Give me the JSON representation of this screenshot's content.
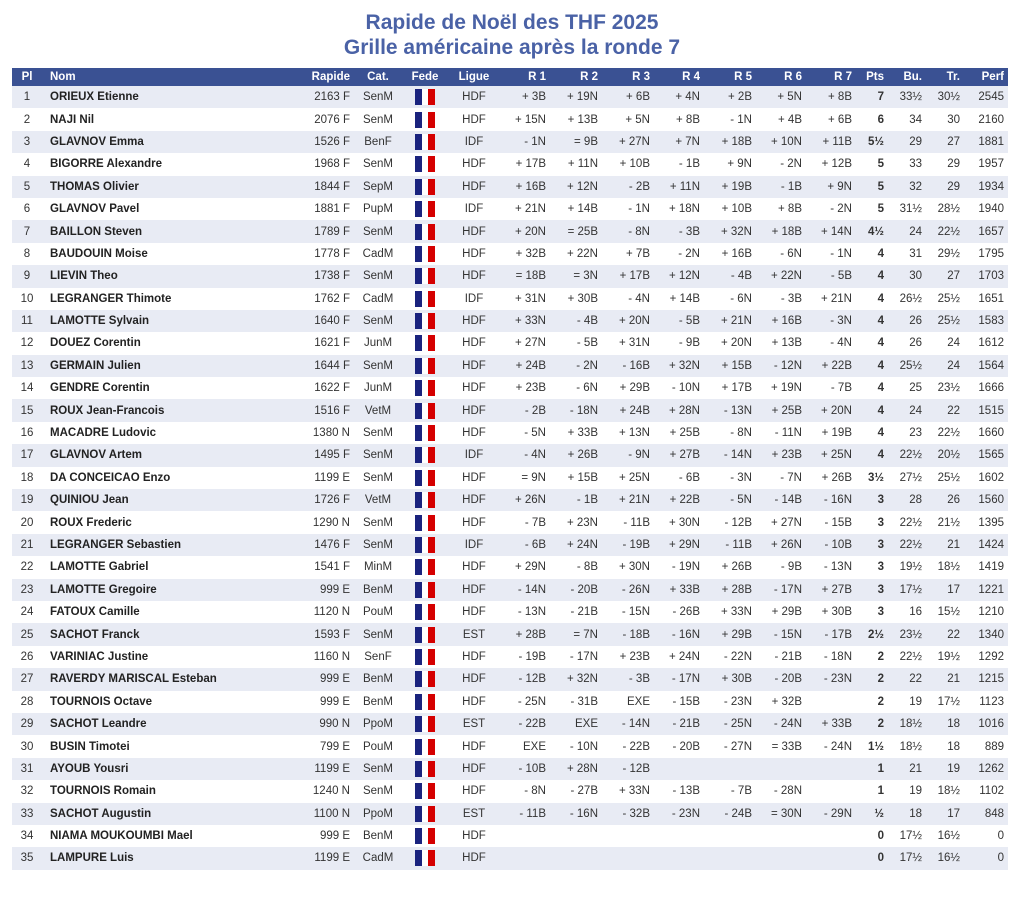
{
  "title": "Rapide de Noël des THF 2025",
  "subtitle": "Grille américaine après la ronde 7",
  "columns": [
    "Pl",
    "Nom",
    "Rapide",
    "Cat.",
    "Fede",
    "Ligue",
    "R 1",
    "R 2",
    "R 3",
    "R 4",
    "R 5",
    "R 6",
    "R 7",
    "Pts",
    "Bu.",
    "Tr.",
    "Perf"
  ],
  "flag_icon": "france-flag",
  "rows": [
    [
      "1",
      "ORIEUX Etienne",
      "2163 F",
      "SenM",
      "HDF",
      "+ 3B",
      "+ 19N",
      "+ 6B",
      "+ 4N",
      "+ 2B",
      "+ 5N",
      "+ 8B",
      "7",
      "33½",
      "30½",
      "2545"
    ],
    [
      "2",
      "NAJI Nil",
      "2076 F",
      "SenM",
      "HDF",
      "+ 15N",
      "+ 13B",
      "+ 5N",
      "+ 8B",
      "- 1N",
      "+ 4B",
      "+ 6B",
      "6",
      "34",
      "30",
      "2160"
    ],
    [
      "3",
      "GLAVNOV Emma",
      "1526 F",
      "BenF",
      "IDF",
      "- 1N",
      "= 9B",
      "+ 27N",
      "+ 7N",
      "+ 18B",
      "+ 10N",
      "+ 11B",
      "5½",
      "29",
      "27",
      "1881"
    ],
    [
      "4",
      "BIGORRE Alexandre",
      "1968 F",
      "SenM",
      "HDF",
      "+ 17B",
      "+ 11N",
      "+ 10B",
      "- 1B",
      "+ 9N",
      "- 2N",
      "+ 12B",
      "5",
      "33",
      "29",
      "1957"
    ],
    [
      "5",
      "THOMAS Olivier",
      "1844 F",
      "SepM",
      "HDF",
      "+ 16B",
      "+ 12N",
      "- 2B",
      "+ 11N",
      "+ 19B",
      "- 1B",
      "+ 9N",
      "5",
      "32",
      "29",
      "1934"
    ],
    [
      "6",
      "GLAVNOV Pavel",
      "1881 F",
      "PupM",
      "IDF",
      "+ 21N",
      "+ 14B",
      "- 1N",
      "+ 18N",
      "+ 10B",
      "+ 8B",
      "- 2N",
      "5",
      "31½",
      "28½",
      "1940"
    ],
    [
      "7",
      "BAILLON Steven",
      "1789 F",
      "SenM",
      "HDF",
      "+ 20N",
      "= 25B",
      "- 8N",
      "- 3B",
      "+ 32N",
      "+ 18B",
      "+ 14N",
      "4½",
      "24",
      "22½",
      "1657"
    ],
    [
      "8",
      "BAUDOUIN Moise",
      "1778 F",
      "CadM",
      "HDF",
      "+ 32B",
      "+ 22N",
      "+ 7B",
      "- 2N",
      "+ 16B",
      "- 6N",
      "- 1N",
      "4",
      "31",
      "29½",
      "1795"
    ],
    [
      "9",
      "LIEVIN Theo",
      "1738 F",
      "SenM",
      "HDF",
      "= 18B",
      "= 3N",
      "+ 17B",
      "+ 12N",
      "- 4B",
      "+ 22N",
      "- 5B",
      "4",
      "30",
      "27",
      "1703"
    ],
    [
      "10",
      "LEGRANGER Thimote",
      "1762 F",
      "CadM",
      "IDF",
      "+ 31N",
      "+ 30B",
      "- 4N",
      "+ 14B",
      "- 6N",
      "- 3B",
      "+ 21N",
      "4",
      "26½",
      "25½",
      "1651"
    ],
    [
      "11",
      "LAMOTTE Sylvain",
      "1640 F",
      "SenM",
      "HDF",
      "+ 33N",
      "- 4B",
      "+ 20N",
      "- 5B",
      "+ 21N",
      "+ 16B",
      "- 3N",
      "4",
      "26",
      "25½",
      "1583"
    ],
    [
      "12",
      "DOUEZ Corentin",
      "1621 F",
      "JunM",
      "HDF",
      "+ 27N",
      "- 5B",
      "+ 31N",
      "- 9B",
      "+ 20N",
      "+ 13B",
      "- 4N",
      "4",
      "26",
      "24",
      "1612"
    ],
    [
      "13",
      "GERMAIN Julien",
      "1644 F",
      "SenM",
      "HDF",
      "+ 24B",
      "- 2N",
      "- 16B",
      "+ 32N",
      "+ 15B",
      "- 12N",
      "+ 22B",
      "4",
      "25½",
      "24",
      "1564"
    ],
    [
      "14",
      "GENDRE Corentin",
      "1622 F",
      "JunM",
      "HDF",
      "+ 23B",
      "- 6N",
      "+ 29B",
      "- 10N",
      "+ 17B",
      "+ 19N",
      "- 7B",
      "4",
      "25",
      "23½",
      "1666"
    ],
    [
      "15",
      "ROUX Jean-Francois",
      "1516 F",
      "VetM",
      "HDF",
      "- 2B",
      "- 18N",
      "+ 24B",
      "+ 28N",
      "- 13N",
      "+ 25B",
      "+ 20N",
      "4",
      "24",
      "22",
      "1515"
    ],
    [
      "16",
      "MACADRE Ludovic",
      "1380 N",
      "SenM",
      "HDF",
      "- 5N",
      "+ 33B",
      "+ 13N",
      "+ 25B",
      "- 8N",
      "- 11N",
      "+ 19B",
      "4",
      "23",
      "22½",
      "1660"
    ],
    [
      "17",
      "GLAVNOV Artem",
      "1495 F",
      "SenM",
      "IDF",
      "- 4N",
      "+ 26B",
      "- 9N",
      "+ 27B",
      "- 14N",
      "+ 23B",
      "+ 25N",
      "4",
      "22½",
      "20½",
      "1565"
    ],
    [
      "18",
      "DA CONCEICAO Enzo",
      "1199 E",
      "SenM",
      "HDF",
      "= 9N",
      "+ 15B",
      "+ 25N",
      "- 6B",
      "- 3N",
      "- 7N",
      "+ 26B",
      "3½",
      "27½",
      "25½",
      "1602"
    ],
    [
      "19",
      "QUINIOU Jean",
      "1726 F",
      "VetM",
      "HDF",
      "+ 26N",
      "- 1B",
      "+ 21N",
      "+ 22B",
      "- 5N",
      "- 14B",
      "- 16N",
      "3",
      "28",
      "26",
      "1560"
    ],
    [
      "20",
      "ROUX Frederic",
      "1290 N",
      "SenM",
      "HDF",
      "- 7B",
      "+ 23N",
      "- 11B",
      "+ 30N",
      "- 12B",
      "+ 27N",
      "- 15B",
      "3",
      "22½",
      "21½",
      "1395"
    ],
    [
      "21",
      "LEGRANGER Sebastien",
      "1476 F",
      "SenM",
      "IDF",
      "- 6B",
      "+ 24N",
      "- 19B",
      "+ 29N",
      "- 11B",
      "+ 26N",
      "- 10B",
      "3",
      "22½",
      "21",
      "1424"
    ],
    [
      "22",
      "LAMOTTE Gabriel",
      "1541 F",
      "MinM",
      "HDF",
      "+ 29N",
      "- 8B",
      "+ 30N",
      "- 19N",
      "+ 26B",
      "- 9B",
      "- 13N",
      "3",
      "19½",
      "18½",
      "1419"
    ],
    [
      "23",
      "LAMOTTE Gregoire",
      "999 E",
      "BenM",
      "HDF",
      "- 14N",
      "- 20B",
      "- 26N",
      "+ 33B",
      "+ 28B",
      "- 17N",
      "+ 27B",
      "3",
      "17½",
      "17",
      "1221"
    ],
    [
      "24",
      "FATOUX Camille",
      "1120 N",
      "PouM",
      "HDF",
      "- 13N",
      "- 21B",
      "- 15N",
      "- 26B",
      "+ 33N",
      "+ 29B",
      "+ 30B",
      "3",
      "16",
      "15½",
      "1210"
    ],
    [
      "25",
      "SACHOT Franck",
      "1593 F",
      "SenM",
      "EST",
      "+ 28B",
      "= 7N",
      "- 18B",
      "- 16N",
      "+ 29B",
      "- 15N",
      "- 17B",
      "2½",
      "23½",
      "22",
      "1340"
    ],
    [
      "26",
      "VARINIAC Justine",
      "1160 N",
      "SenF",
      "HDF",
      "- 19B",
      "- 17N",
      "+ 23B",
      "+ 24N",
      "- 22N",
      "- 21B",
      "- 18N",
      "2",
      "22½",
      "19½",
      "1292"
    ],
    [
      "27",
      "RAVERDY MARISCAL Esteban",
      "999 E",
      "BenM",
      "HDF",
      "- 12B",
      "+ 32N",
      "- 3B",
      "- 17N",
      "+ 30B",
      "- 20B",
      "- 23N",
      "2",
      "22",
      "21",
      "1215"
    ],
    [
      "28",
      "TOURNOIS Octave",
      "999 E",
      "BenM",
      "HDF",
      "- 25N",
      "- 31B",
      "EXE",
      "- 15B",
      "- 23N",
      "+ 32B",
      "",
      "2",
      "19",
      "17½",
      "1123"
    ],
    [
      "29",
      "SACHOT Leandre",
      "990 N",
      "PpoM",
      "EST",
      "- 22B",
      "EXE",
      "- 14N",
      "- 21B",
      "- 25N",
      "- 24N",
      "+ 33B",
      "2",
      "18½",
      "18",
      "1016"
    ],
    [
      "30",
      "BUSIN Timotei",
      "799 E",
      "PouM",
      "HDF",
      "EXE",
      "- 10N",
      "- 22B",
      "- 20B",
      "- 27N",
      "= 33B",
      "- 24N",
      "1½",
      "18½",
      "18",
      "889"
    ],
    [
      "31",
      "AYOUB Yousri",
      "1199 E",
      "SenM",
      "HDF",
      "- 10B",
      "+ 28N",
      "- 12B",
      "",
      "",
      "",
      "",
      "1",
      "21",
      "19",
      "1262"
    ],
    [
      "32",
      "TOURNOIS Romain",
      "1240 N",
      "SenM",
      "HDF",
      "- 8N",
      "- 27B",
      "+ 33N",
      "- 13B",
      "- 7B",
      "- 28N",
      "",
      "1",
      "19",
      "18½",
      "1102"
    ],
    [
      "33",
      "SACHOT Augustin",
      "1100 N",
      "PpoM",
      "EST",
      "- 11B",
      "- 16N",
      "- 32B",
      "- 23N",
      "- 24B",
      "= 30N",
      "- 29N",
      "½",
      "18",
      "17",
      "848"
    ],
    [
      "34",
      "NIAMA MOUKOUMBI Mael",
      "999 E",
      "BenM",
      "HDF",
      "",
      "",
      "",
      "",
      "",
      "",
      "",
      "0",
      "17½",
      "16½",
      "0"
    ],
    [
      "35",
      "LAMPURE Luis",
      "1199 E",
      "CadM",
      "HDF",
      "",
      "",
      "",
      "",
      "",
      "",
      "",
      "0",
      "17½",
      "16½",
      "0"
    ]
  ]
}
